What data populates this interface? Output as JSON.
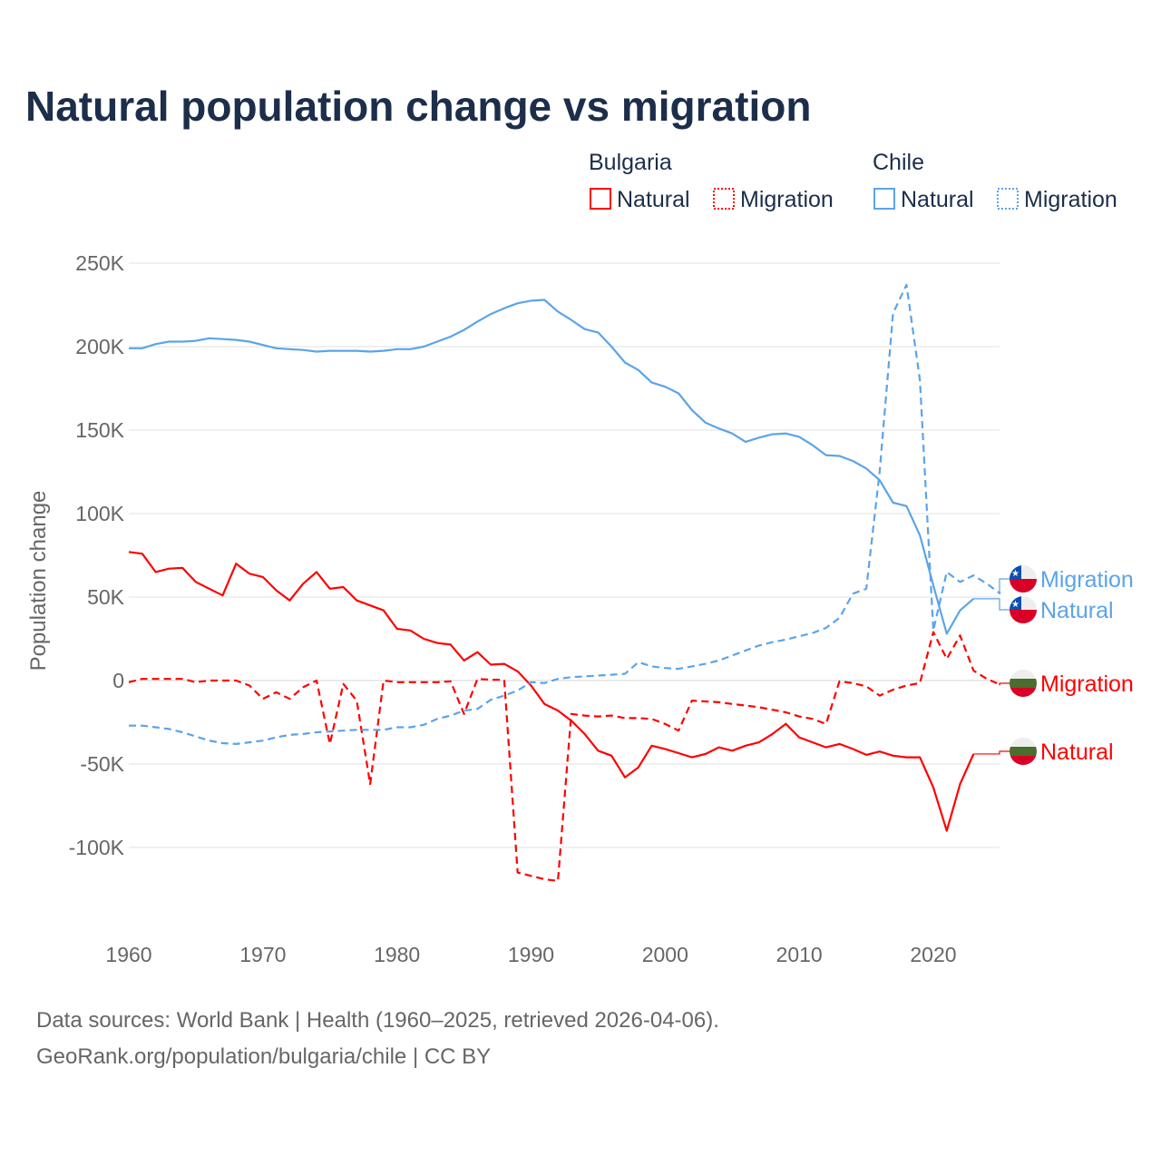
{
  "chart_data": {
    "type": "line",
    "title": "Natural population change vs migration",
    "xlabel": "",
    "ylabel": "Population change",
    "xlim": [
      1960,
      2025
    ],
    "ylim": [
      -130000,
      260000
    ],
    "grid": true,
    "x_ticks": [
      "1960",
      "1970",
      "1980",
      "1990",
      "2000",
      "2010",
      "2020"
    ],
    "y_ticks": [
      {
        "value": 250000,
        "label": "250K"
      },
      {
        "value": 200000,
        "label": "200K"
      },
      {
        "value": 150000,
        "label": "150K"
      },
      {
        "value": 100000,
        "label": "100K"
      },
      {
        "value": 50000,
        "label": "50K"
      },
      {
        "value": 0,
        "label": "0"
      },
      {
        "value": -50000,
        "label": "-50K"
      },
      {
        "value": -100000,
        "label": "-100K"
      }
    ],
    "legend": {
      "placement": "top-right",
      "groups": [
        {
          "country": "Bulgaria",
          "entries": [
            "Natural",
            "Migration"
          ]
        },
        {
          "country": "Chile",
          "entries": [
            "Natural",
            "Migration"
          ]
        }
      ]
    },
    "series": [
      {
        "name": "Natural",
        "country": "Bulgaria",
        "color": "#ff0000",
        "dash": false,
        "start_year": 1960,
        "values": [
          77000,
          76000,
          65000,
          67000,
          67500,
          59000,
          55000,
          51000,
          70000,
          64000,
          62000,
          54000,
          48000,
          58000,
          65000,
          55000,
          56000,
          48000,
          45000,
          42000,
          31000,
          30000,
          25000,
          22500,
          21500,
          12000,
          17000,
          9500,
          10000,
          5500,
          -3000,
          -14000,
          -18000,
          -24000,
          -32000,
          -42000,
          -45000,
          -58000,
          -52000,
          -39000,
          -41000,
          -43500,
          -46000,
          -44000,
          -40000,
          -42000,
          -39000,
          -37000,
          -32000,
          -26000,
          -34000,
          -37000,
          -40000,
          -38000,
          -41000,
          -44500,
          -42500,
          -45000,
          -46000,
          -46000,
          -64000,
          -90000,
          -62000,
          -44000
        ]
      },
      {
        "name": "Migration",
        "country": "Bulgaria",
        "color": "#ff0000",
        "dash": true,
        "start_year": 1960,
        "values": [
          -1000,
          1000,
          1000,
          1000,
          1000,
          -1000,
          0,
          0,
          0,
          -3000,
          -11000,
          -7000,
          -11000,
          -4000,
          0,
          -38000,
          -2000,
          -12000,
          -62000,
          0,
          -1000,
          -1000,
          -1000,
          -1000,
          -500,
          -20000,
          1000,
          500,
          500,
          -115000,
          -117000,
          -119000,
          -120000,
          -20000,
          -21000,
          -21500,
          -21000,
          -22500,
          -22500,
          -23000,
          -26000,
          -30000,
          -12000,
          -12500,
          -13000,
          -14000,
          -15000,
          -16000,
          -17500,
          -19000,
          -21500,
          -23000,
          -26000,
          -500,
          -1500,
          -3500,
          -9000,
          -5500,
          -3000,
          -1500,
          29000,
          13000,
          27000,
          6000,
          1000,
          -2500
        ]
      },
      {
        "name": "Natural",
        "country": "Chile",
        "color": "#5ba4e9",
        "dash": false,
        "start_year": 1960,
        "values": [
          199000,
          199000,
          201500,
          203000,
          203000,
          203500,
          205000,
          204500,
          204000,
          203000,
          201000,
          199000,
          198500,
          198000,
          197000,
          197500,
          197500,
          197500,
          197000,
          197500,
          198500,
          198500,
          200000,
          203000,
          206000,
          210000,
          215000,
          219500,
          223000,
          226000,
          227500,
          228000,
          221000,
          216000,
          210500,
          208500,
          200000,
          190500,
          186000,
          178500,
          176000,
          172000,
          162000,
          154500,
          151000,
          148000,
          143000,
          145500,
          147500,
          148000,
          146000,
          141000,
          135000,
          134500,
          131500,
          127000,
          120000,
          106500,
          104500,
          87000,
          57000,
          28000,
          42000,
          49000
        ]
      },
      {
        "name": "Migration",
        "country": "Chile",
        "color": "#5ba4e9",
        "dash": true,
        "start_year": 1960,
        "values": [
          -27000,
          -27000,
          -28000,
          -29000,
          -31000,
          -33500,
          -36000,
          -37500,
          -38000,
          -37000,
          -36000,
          -34000,
          -32500,
          -32000,
          -31000,
          -30500,
          -30000,
          -29500,
          -29500,
          -29500,
          -28000,
          -28000,
          -26500,
          -23000,
          -21000,
          -18000,
          -17000,
          -11500,
          -9000,
          -6000,
          -1000,
          -1500,
          1000,
          2000,
          2500,
          3000,
          3500,
          4000,
          11000,
          8500,
          7500,
          7000,
          8500,
          10000,
          12000,
          15000,
          18000,
          21000,
          23000,
          24500,
          26500,
          28500,
          31500,
          37500,
          52000,
          55000,
          125000,
          220000,
          237000,
          180000,
          30000,
          65000,
          59000,
          63000,
          58000,
          52000
        ]
      }
    ],
    "end_labels": [
      "Migration",
      "Natural",
      "Migration",
      "Natural"
    ]
  },
  "footer": {
    "line1": "Data sources: World Bank | Health (1960–2025, retrieved 2026-04-06).",
    "line2": "GeoRank.org/population/bulgaria/chile | CC BY"
  }
}
